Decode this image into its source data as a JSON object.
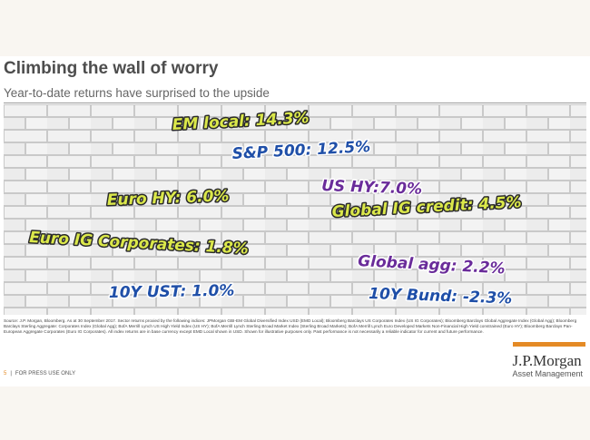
{
  "header": {
    "title": "Climbing the wall of worry",
    "subtitle": "Year-to-date returns have surprised to the upside"
  },
  "labels": [
    {
      "text": "EM local: 14.3%",
      "style": "yellow"
    },
    {
      "text": "S&P 500: 12.5%",
      "style": "blue"
    },
    {
      "text": "US HY:7.0%",
      "style": "purple"
    },
    {
      "text": "Euro HY: 6.0%",
      "style": "yellow"
    },
    {
      "text": "Global IG credit: 4.5%",
      "style": "yellow"
    },
    {
      "text": "Euro IG Corporates: 1.8%",
      "style": "yellow"
    },
    {
      "text": "Global agg: 2.2%",
      "style": "purple"
    },
    {
      "text": "10Y UST: 1.0%",
      "style": "blue"
    },
    {
      "text": "10Y Bund: -2.3%",
      "style": "blue"
    }
  ],
  "source": "Source: J.P. Morgan, Bloomberg. As at 30 September 2017. Sector returns proxied by the following indices: JPMorgan GBI-EM Global Diversified Index USD (EMD Local); Bloomberg Barclays US Corporates Index (US IG Corporates); Bloomberg Barclays Global Aggregate Index (Global Agg); Bloomberg Barclays Sterling Aggregate: Corporates Index (Global Agg); BofA Merrill Lynch US High Yield Index (US HY); BofA Merrill Lynch Sterling Broad Market Index (Sterling Broad Markets); BofA Merrill Lynch Euro Developed Markets Non-Financial High Yield constrained (Euro HY); Bloomberg Barclays Pan-European Aggregate Corporates (Euro IG Corporates). All index returns are in base currency except EMD Local shown in USD. Shown for illustrative purposes only. Past performance is not necessarily a reliable indicator for current and future performance.",
  "footer": {
    "page_number": "5",
    "separator": "|",
    "text": "FOR PRESS USE ONLY",
    "logo": "J.P.Morgan",
    "logo_subtitle": "Asset Management"
  }
}
